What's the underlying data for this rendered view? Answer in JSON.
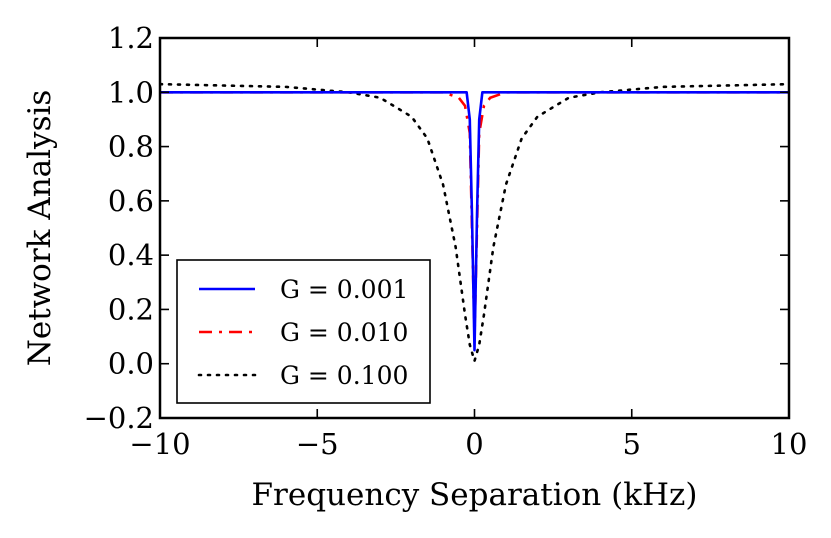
{
  "chart_data": {
    "type": "line",
    "title": "",
    "xlabel": "Frequency Separation (kHz)",
    "ylabel": "Network Analysis",
    "xlim": [
      -10,
      10
    ],
    "ylim": [
      -0.2,
      1.2
    ],
    "xticks": [
      -10,
      -5,
      0,
      5,
      10
    ],
    "xtick_labels": [
      "−10",
      "−5",
      "0",
      "5",
      "10"
    ],
    "yticks": [
      -0.2,
      0.0,
      0.2,
      0.4,
      0.6,
      0.8,
      1.0,
      1.2
    ],
    "ytick_labels": [
      "−0.2",
      "0.0",
      "0.2",
      "0.4",
      "0.6",
      "0.8",
      "1.0",
      "1.2"
    ],
    "grid": false,
    "legend_position": "lower-left",
    "series": [
      {
        "name": "G = 0.001",
        "color": "#0000ff",
        "style": "solid",
        "x": [
          -10,
          -3,
          -1,
          -0.4,
          -0.25,
          -0.15,
          -0.08,
          0,
          0.08,
          0.15,
          0.25,
          0.4,
          1,
          3,
          10
        ],
        "y": [
          1.0,
          1.0,
          1.0,
          1.0,
          1.0,
          0.9,
          0.55,
          0.05,
          0.55,
          0.9,
          1.0,
          1.0,
          1.0,
          1.0,
          1.0
        ]
      },
      {
        "name": "G = 0.010",
        "color": "#ff0000",
        "style": "dashdot",
        "x": [
          -10,
          -3,
          -1,
          -0.5,
          -0.3,
          -0.15,
          -0.08,
          0,
          0.08,
          0.15,
          0.3,
          0.5,
          1,
          3,
          10
        ],
        "y": [
          1.0,
          1.0,
          1.0,
          0.98,
          0.95,
          0.85,
          0.5,
          0.1,
          0.5,
          0.85,
          0.95,
          0.98,
          1.0,
          1.0,
          1.0
        ]
      },
      {
        "name": "G = 0.100",
        "color": "#000000",
        "style": "dotted",
        "x": [
          -10,
          -6,
          -4,
          -3,
          -2,
          -1.5,
          -1,
          -0.6,
          -0.3,
          -0.15,
          0,
          0.15,
          0.3,
          0.6,
          1,
          1.5,
          2,
          3,
          4,
          6,
          10
        ],
        "y": [
          1.03,
          1.02,
          1.0,
          0.98,
          0.91,
          0.83,
          0.66,
          0.43,
          0.18,
          0.07,
          0.01,
          0.07,
          0.18,
          0.43,
          0.66,
          0.83,
          0.91,
          0.98,
          1.0,
          1.02,
          1.03
        ]
      }
    ]
  }
}
